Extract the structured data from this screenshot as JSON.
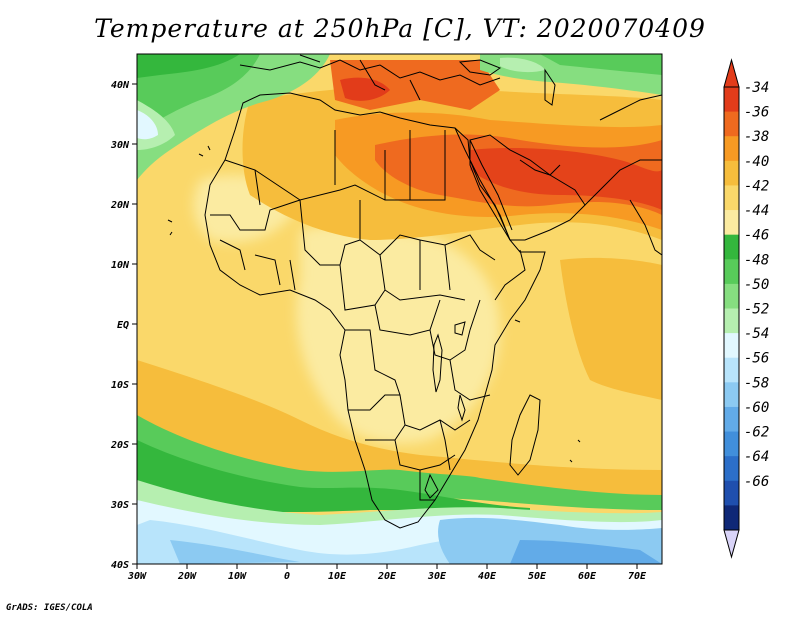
{
  "title": "Temperature at 250hPa [C], VT: 2020070409",
  "credit": "GrADS: IGES/COLA",
  "map": {
    "lon_range": [
      -30,
      75
    ],
    "lat_range": [
      -40,
      45
    ],
    "x_ticks": [
      "30W",
      "20W",
      "10W",
      "0",
      "10E",
      "20E",
      "30E",
      "40E",
      "50E",
      "60E",
      "70E"
    ],
    "y_ticks": [
      "40N",
      "30N",
      "20N",
      "10N",
      "EQ",
      "10S",
      "20S",
      "30S",
      "40S"
    ]
  },
  "colorbar": {
    "labels": [
      "-34",
      "-36",
      "-38",
      "-40",
      "-42",
      "-44",
      "-46",
      "-48",
      "-50",
      "-52",
      "-54",
      "-56",
      "-58",
      "-60",
      "-62",
      "-64",
      "-66"
    ],
    "colors": [
      "#e23c1a",
      "#ef6a1f",
      "#f79a23",
      "#f6bd3c",
      "#fad86a",
      "#fbeba1",
      "#34b73d",
      "#58cb5a",
      "#86de80",
      "#b6efb0",
      "#e2f8ff",
      "#b8e4fb",
      "#8ccaf2",
      "#62abe8",
      "#418fdb",
      "#2c6fc9",
      "#1f4fae",
      "#0f2877"
    ],
    "top_color": "#e23c1a",
    "bottom_color": "#d9d4f8"
  },
  "colors": {
    "land_line": "#000000",
    "ocean_cold": "#5aa2e6",
    "green_band": "#4cc24e"
  }
}
